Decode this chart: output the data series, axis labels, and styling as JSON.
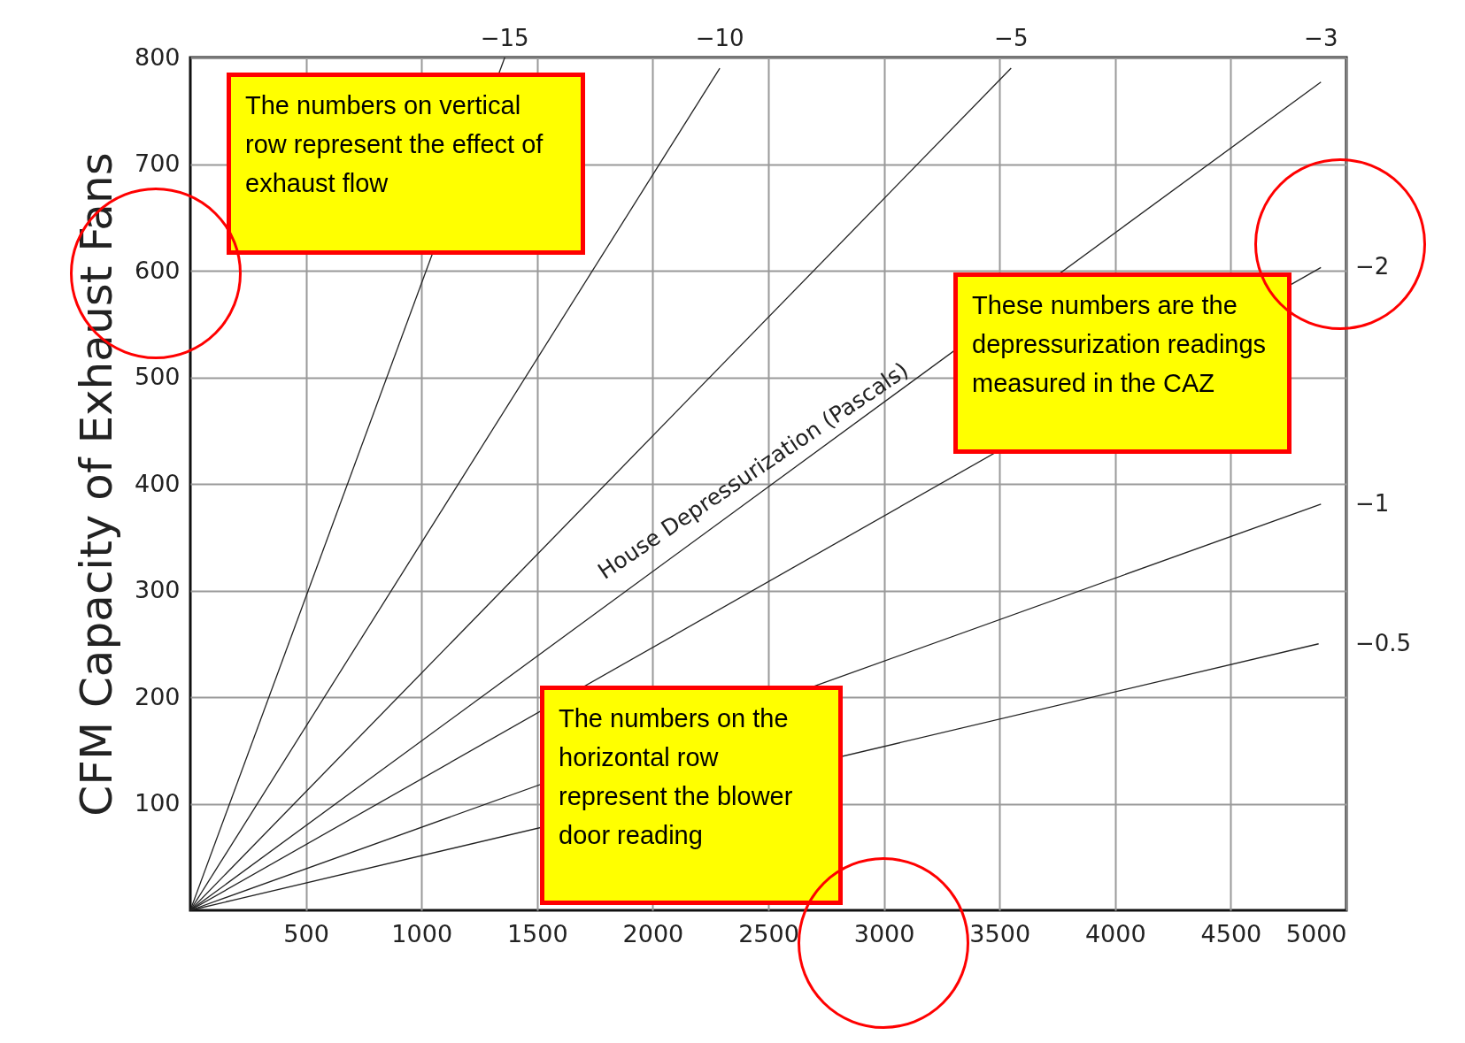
{
  "chart_data": {
    "type": "line",
    "ylabel": "CFM Capacity of Exhaust Fans",
    "xlim": [
      0,
      5000
    ],
    "ylim": [
      0,
      800
    ],
    "xticks": [
      500,
      1000,
      1500,
      2000,
      2500,
      3000,
      3500,
      4000,
      4500,
      5000
    ],
    "yticks": [
      100,
      200,
      300,
      400,
      500,
      600,
      700,
      800
    ],
    "grid": true,
    "marker": "none",
    "line_style": "solid",
    "series": [
      {
        "name": "−15",
        "color": "#222222",
        "x": [
          0,
          1360
        ],
        "values": [
          0,
          800
        ]
      },
      {
        "name": "−10",
        "color": "#222222",
        "x": [
          0,
          2290
        ],
        "values": [
          0,
          790
        ]
      },
      {
        "name": "−5",
        "color": "#222222",
        "x": [
          0,
          3550
        ],
        "values": [
          0,
          790
        ]
      },
      {
        "name": "−3",
        "color": "#222222",
        "x": [
          0,
          4890
        ],
        "values": [
          0,
          777
        ]
      },
      {
        "name": "−2",
        "color": "#222222",
        "x": [
          0,
          4890
        ],
        "values": [
          0,
          603
        ]
      },
      {
        "name": "−1",
        "color": "#222222",
        "x": [
          0,
          4890
        ],
        "values": [
          0,
          381
        ]
      },
      {
        "name": "−0.5",
        "color": "#222222",
        "x": [
          0,
          4880
        ],
        "values": [
          0,
          250
        ]
      }
    ],
    "annotations": [
      "House Depressurization (Pascals)",
      "The numbers on vertical row represent the effect of exhaust flow",
      "These numbers are the depressurization readings measured in the CAZ",
      "The numbers on the horizontal row represent the blower door reading"
    ]
  }
}
